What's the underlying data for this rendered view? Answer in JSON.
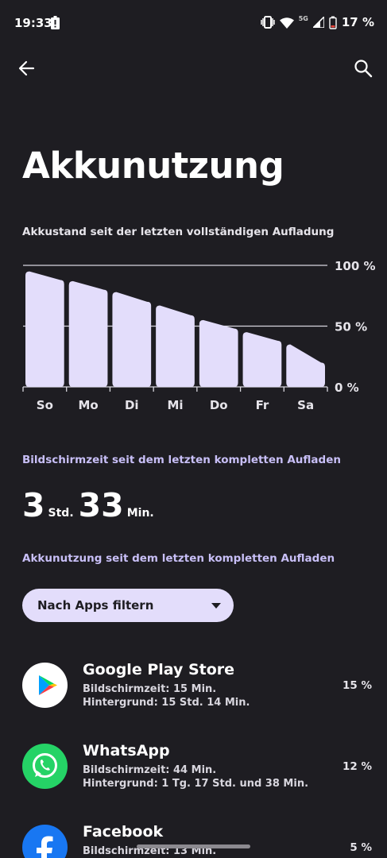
{
  "status_bar": {
    "time": "19:33",
    "network": "5G",
    "battery_percent": "17 %"
  },
  "header": {
    "title": "Akkunutzung"
  },
  "chart_caption": "Akkustand seit der letzten vollständigen Aufladung",
  "chart_data": {
    "type": "bar",
    "categories": [
      "So",
      "Mo",
      "Di",
      "Mi",
      "Do",
      "Fr",
      "Sa"
    ],
    "values": [
      95,
      87,
      78,
      67,
      55,
      45,
      35
    ],
    "end_values": [
      88,
      80,
      70,
      59,
      48,
      38,
      20
    ],
    "y_ticks": [
      "100 %",
      "50 %",
      "0 %"
    ],
    "ylim": [
      0,
      100
    ],
    "xlabel": "",
    "ylabel": "",
    "bar_color": "#e3ddfb",
    "grid": true
  },
  "screen_time": {
    "label": "Bildschirmzeit seit dem letzten kompletten Aufladen",
    "hours": "3",
    "hours_unit": "Std.",
    "minutes": "33",
    "minutes_unit": "Min."
  },
  "usage_label": "Akkunutzung seit dem letzten kompletten Aufladen",
  "filter": {
    "label": "Nach Apps filtern"
  },
  "apps": [
    {
      "name": "Google Play Store",
      "line1": "Bildschirmzeit: 15 Min.",
      "line2": "Hintergrund: 15 Std. 14 Min.",
      "percent": "15 %",
      "icon": "google-play-icon"
    },
    {
      "name": "WhatsApp",
      "line1": "Bildschirmzeit: 44 Min.",
      "line2": "Hintergrund: 1 Tg. 17 Std. und 38 Min.",
      "percent": "12 %",
      "icon": "whatsapp-icon"
    },
    {
      "name": "Facebook",
      "line1": "Bildschirmzeit: 13 Min.",
      "line2": "",
      "percent": "5 %",
      "icon": "facebook-icon"
    }
  ],
  "colors": {
    "background": "#1e1d22",
    "accent": "#c8bff7",
    "chip": "#e3ddfb"
  }
}
